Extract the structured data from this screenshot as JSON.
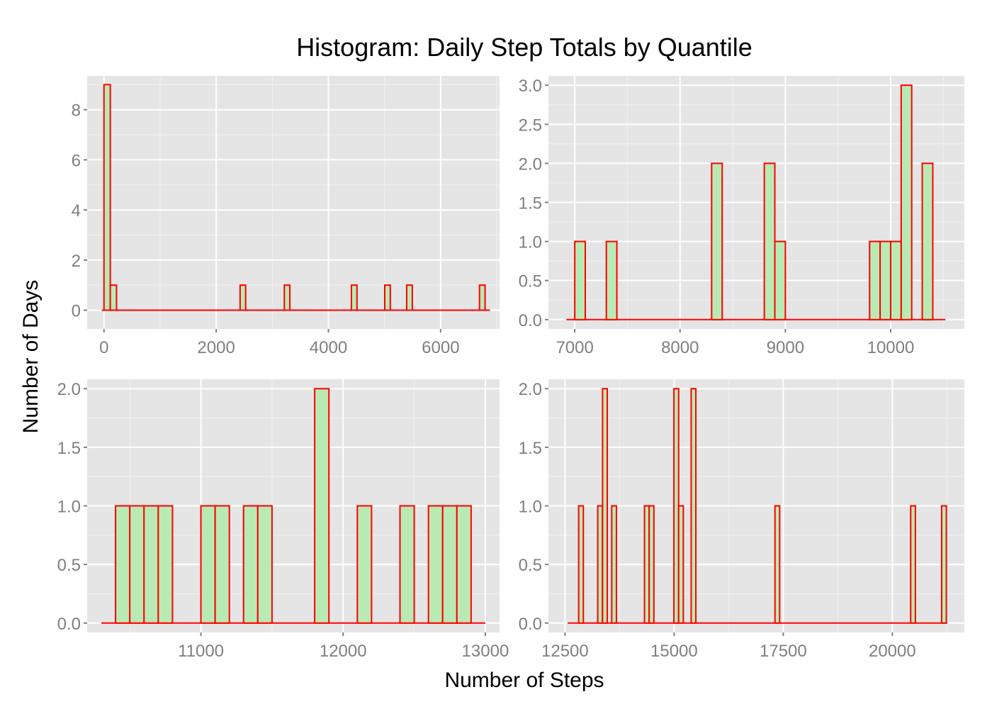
{
  "title": "Histogram: Daily Step Totals by Quantile",
  "xlabel": "Number of Steps",
  "ylabel": "Number of Days",
  "colors": {
    "panel_background": "#e5e5e5",
    "grid_major": "#ffffff",
    "grid_minor": "#f0f0f0",
    "bar_fill": "#b9eab4",
    "bar_outline": "#ff0000",
    "tick_label": "#7f7f7f"
  },
  "chart_data": [
    {
      "type": "bar",
      "title": "",
      "xlim": [
        -300,
        7050
      ],
      "ylim": [
        -0.75,
        9.35
      ],
      "x_ticks": [
        0,
        2000,
        4000,
        6000
      ],
      "x_tick_labels": [
        "0",
        "2000",
        "4000",
        "6000"
      ],
      "y_ticks": [
        0,
        2,
        4,
        6,
        8
      ],
      "y_tick_labels": [
        "0",
        "2",
        "4",
        "6",
        "8"
      ],
      "baseline": [
        -40,
        6880
      ],
      "bars": [
        {
          "x0": 0,
          "x1": 112,
          "count": 9
        },
        {
          "x0": 112,
          "x1": 224,
          "count": 1
        },
        {
          "x0": 2426,
          "x1": 2525,
          "count": 1
        },
        {
          "x0": 3214,
          "x1": 3313,
          "count": 1
        },
        {
          "x0": 4410,
          "x1": 4509,
          "count": 1
        },
        {
          "x0": 5004,
          "x1": 5103,
          "count": 1
        },
        {
          "x0": 5395,
          "x1": 5495,
          "count": 1
        },
        {
          "x0": 6693,
          "x1": 6792,
          "count": 1
        }
      ]
    },
    {
      "type": "bar",
      "title": "",
      "xlim": [
        6750,
        10700
      ],
      "ylim": [
        -0.12,
        3.12
      ],
      "x_ticks": [
        7000,
        8000,
        9000,
        10000
      ],
      "x_tick_labels": [
        "7000",
        "8000",
        "9000",
        "10000"
      ],
      "y_ticks": [
        0,
        0.5,
        1,
        1.5,
        2,
        2.5,
        3
      ],
      "y_tick_labels": [
        "0.0",
        "0.5",
        "1.0",
        "1.5",
        "2.0",
        "2.5",
        "3.0"
      ],
      "baseline": [
        6920,
        10520
      ],
      "bars": [
        {
          "x0": 7000,
          "x1": 7100,
          "count": 1
        },
        {
          "x0": 7300,
          "x1": 7400,
          "count": 1
        },
        {
          "x0": 8300,
          "x1": 8400,
          "count": 2
        },
        {
          "x0": 8800,
          "x1": 8900,
          "count": 2
        },
        {
          "x0": 8900,
          "x1": 9000,
          "count": 1
        },
        {
          "x0": 9800,
          "x1": 9900,
          "count": 1
        },
        {
          "x0": 9900,
          "x1": 10000,
          "count": 1
        },
        {
          "x0": 10000,
          "x1": 10100,
          "count": 1
        },
        {
          "x0": 10100,
          "x1": 10200,
          "count": 3
        },
        {
          "x0": 10300,
          "x1": 10400,
          "count": 2
        }
      ]
    },
    {
      "type": "bar",
      "title": "",
      "xlim": [
        10200,
        13100
      ],
      "ylim": [
        -0.08,
        2.08
      ],
      "x_ticks": [
        11000,
        12000,
        13000
      ],
      "x_tick_labels": [
        "11000",
        "12000",
        "13000"
      ],
      "y_ticks": [
        0,
        0.5,
        1,
        1.5,
        2
      ],
      "y_tick_labels": [
        "0.0",
        "0.5",
        "1.0",
        "1.5",
        "2.0"
      ],
      "baseline": [
        10300,
        13000
      ],
      "bars": [
        {
          "x0": 10400,
          "x1": 10500,
          "count": 1
        },
        {
          "x0": 10500,
          "x1": 10600,
          "count": 1
        },
        {
          "x0": 10600,
          "x1": 10700,
          "count": 1
        },
        {
          "x0": 10700,
          "x1": 10800,
          "count": 1
        },
        {
          "x0": 11000,
          "x1": 11100,
          "count": 1
        },
        {
          "x0": 11100,
          "x1": 11200,
          "count": 1
        },
        {
          "x0": 11300,
          "x1": 11400,
          "count": 1
        },
        {
          "x0": 11400,
          "x1": 11500,
          "count": 1
        },
        {
          "x0": 11800,
          "x1": 11900,
          "count": 2
        },
        {
          "x0": 12100,
          "x1": 12200,
          "count": 1
        },
        {
          "x0": 12400,
          "x1": 12500,
          "count": 1
        },
        {
          "x0": 12600,
          "x1": 12700,
          "count": 1
        },
        {
          "x0": 12700,
          "x1": 12800,
          "count": 1
        },
        {
          "x0": 12800,
          "x1": 12900,
          "count": 1
        }
      ]
    },
    {
      "type": "bar",
      "title": "",
      "xlim": [
        12120,
        21650
      ],
      "ylim": [
        -0.08,
        2.08
      ],
      "x_ticks": [
        12500,
        15000,
        17500,
        20000
      ],
      "x_tick_labels": [
        "12500",
        "15000",
        "17500",
        "20000"
      ],
      "y_ticks": [
        0,
        0.5,
        1,
        1.5,
        2
      ],
      "y_tick_labels": [
        "0.0",
        "0.5",
        "1.0",
        "1.5",
        "2.0"
      ],
      "baseline": [
        12560,
        21250
      ],
      "bars": [
        {
          "x0": 12812,
          "x1": 12920,
          "count": 1
        },
        {
          "x0": 13250,
          "x1": 13358,
          "count": 1
        },
        {
          "x0": 13360,
          "x1": 13468,
          "count": 2
        },
        {
          "x0": 13570,
          "x1": 13678,
          "count": 1
        },
        {
          "x0": 14320,
          "x1": 14428,
          "count": 1
        },
        {
          "x0": 14428,
          "x1": 14536,
          "count": 1
        },
        {
          "x0": 14995,
          "x1": 15103,
          "count": 2
        },
        {
          "x0": 15103,
          "x1": 15211,
          "count": 1
        },
        {
          "x0": 15390,
          "x1": 15498,
          "count": 2
        },
        {
          "x0": 17310,
          "x1": 17418,
          "count": 1
        },
        {
          "x0": 20420,
          "x1": 20528,
          "count": 1
        },
        {
          "x0": 21130,
          "x1": 21238,
          "count": 1
        }
      ]
    }
  ]
}
